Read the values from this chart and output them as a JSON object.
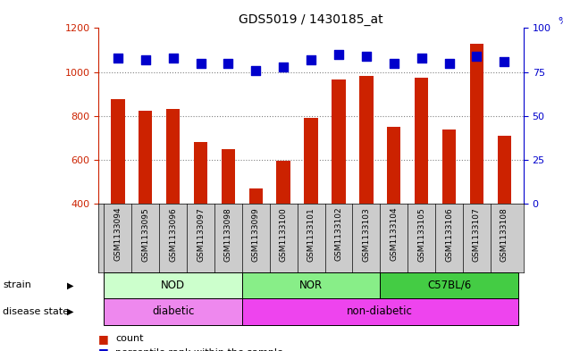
{
  "title": "GDS5019 / 1430185_at",
  "samples": [
    "GSM1133094",
    "GSM1133095",
    "GSM1133096",
    "GSM1133097",
    "GSM1133098",
    "GSM1133099",
    "GSM1133100",
    "GSM1133101",
    "GSM1133102",
    "GSM1133103",
    "GSM1133104",
    "GSM1133105",
    "GSM1133106",
    "GSM1133107",
    "GSM1133108"
  ],
  "counts": [
    875,
    825,
    830,
    680,
    648,
    468,
    595,
    790,
    965,
    980,
    748,
    975,
    738,
    1130,
    710
  ],
  "percentile_ranks": [
    83,
    82,
    83,
    80,
    80,
    76,
    78,
    82,
    85,
    84,
    80,
    83,
    80,
    84,
    81
  ],
  "bar_color": "#cc2200",
  "dot_color": "#0000cc",
  "ylim_left": [
    400,
    1200
  ],
  "ylim_right": [
    0,
    100
  ],
  "yticks_left": [
    400,
    600,
    800,
    1000,
    1200
  ],
  "yticks_right": [
    0,
    25,
    50,
    75,
    100
  ],
  "grid_values": [
    600,
    800,
    1000
  ],
  "strain_groups": [
    {
      "label": "NOD",
      "start": 0,
      "end": 4,
      "color": "#ccffcc"
    },
    {
      "label": "NOR",
      "start": 5,
      "end": 9,
      "color": "#88ee88"
    },
    {
      "label": "C57BL/6",
      "start": 10,
      "end": 14,
      "color": "#44cc44"
    }
  ],
  "disease_groups": [
    {
      "label": "diabetic",
      "start": 0,
      "end": 4,
      "color": "#ee88ee"
    },
    {
      "label": "non-diabetic",
      "start": 5,
      "end": 14,
      "color": "#ee44ee"
    }
  ],
  "legend_count_color": "#cc2200",
  "legend_dot_color": "#0000cc",
  "tick_color_left": "#cc2200",
  "tick_color_right": "#0000cc",
  "bar_width": 0.5,
  "dot_size": 55,
  "xtick_bg_color": "#cccccc"
}
